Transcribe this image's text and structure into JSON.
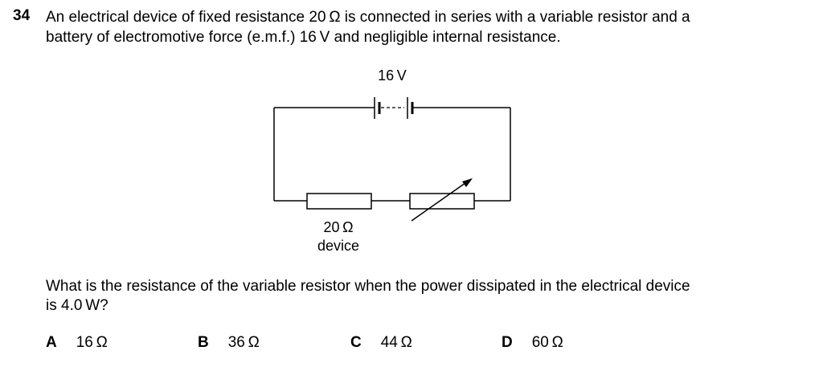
{
  "question": {
    "number": "34",
    "stem_lines": [
      "An electrical device of fixed resistance 20 Ω is connected in series with a variable resistor and a",
      "battery of electromotive force (e.m.f.) 16 V and negligible internal resistance."
    ],
    "prompt_lines": [
      "What is the resistance of the variable resistor when the power dissipated in the electrical device",
      "is 4.0 W?"
    ]
  },
  "circuit": {
    "battery_label": "16 V",
    "device_resistance_label": "20 Ω",
    "device_label": "device"
  },
  "options": [
    {
      "letter": "A",
      "value": "16 Ω"
    },
    {
      "letter": "B",
      "value": "36 Ω"
    },
    {
      "letter": "C",
      "value": "44 Ω"
    },
    {
      "letter": "D",
      "value": "60 Ω"
    }
  ]
}
